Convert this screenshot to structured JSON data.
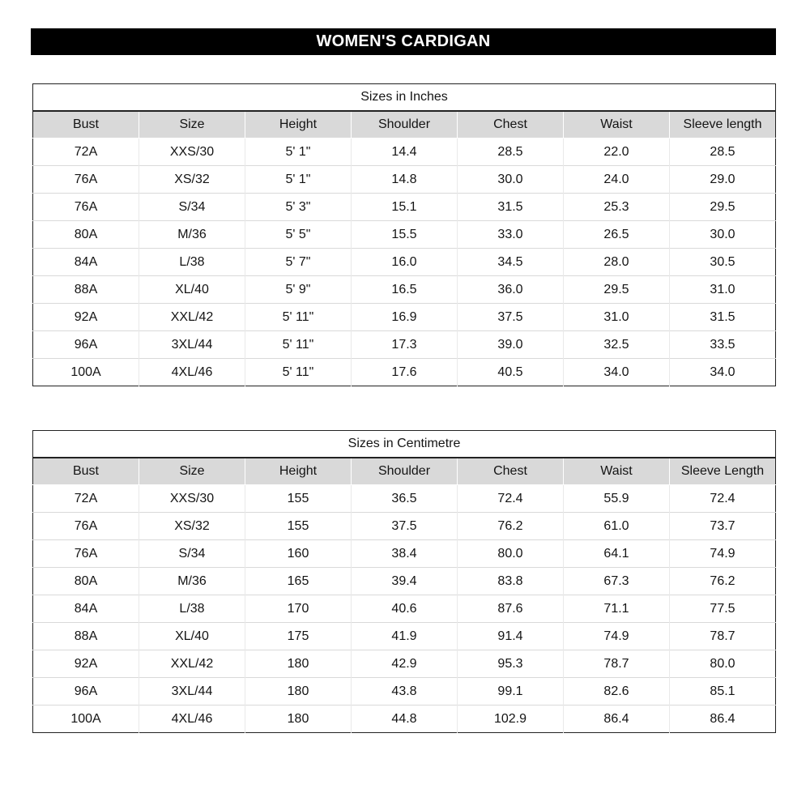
{
  "header": {
    "title": "WOMEN'S CARDIGAN"
  },
  "colors": {
    "bar_background": "#000000",
    "bar_text": "#ffffff",
    "table_header_background": "#d9d9d9",
    "table_border": "#222222",
    "gridline": "#d9d9d9",
    "text": "#141414"
  },
  "chart_data": [
    {
      "type": "table",
      "title": "Sizes in Inches",
      "columns": [
        "Bust",
        "Size",
        "Height",
        "Shoulder",
        "Chest",
        "Waist",
        "Sleeve length"
      ],
      "rows": [
        [
          "72A",
          "XXS/30",
          "5' 1\"",
          "14.4",
          "28.5",
          "22.0",
          "28.5"
        ],
        [
          "76A",
          "XS/32",
          "5' 1\"",
          "14.8",
          "30.0",
          "24.0",
          "29.0"
        ],
        [
          "76A",
          "S/34",
          "5' 3\"",
          "15.1",
          "31.5",
          "25.3",
          "29.5"
        ],
        [
          "80A",
          "M/36",
          "5' 5\"",
          "15.5",
          "33.0",
          "26.5",
          "30.0"
        ],
        [
          "84A",
          "L/38",
          "5' 7\"",
          "16.0",
          "34.5",
          "28.0",
          "30.5"
        ],
        [
          "88A",
          "XL/40",
          "5' 9\"",
          "16.5",
          "36.0",
          "29.5",
          "31.0"
        ],
        [
          "92A",
          "XXL/42",
          "5' 11\"",
          "16.9",
          "37.5",
          "31.0",
          "31.5"
        ],
        [
          "96A",
          "3XL/44",
          "5' 11\"",
          "17.3",
          "39.0",
          "32.5",
          "33.5"
        ],
        [
          "100A",
          "4XL/46",
          "5' 11\"",
          "17.6",
          "40.5",
          "34.0",
          "34.0"
        ]
      ]
    },
    {
      "type": "table",
      "title": "Sizes in Centimetre",
      "columns": [
        "Bust",
        "Size",
        "Height",
        "Shoulder",
        "Chest",
        "Waist",
        "Sleeve Length"
      ],
      "rows": [
        [
          "72A",
          "XXS/30",
          "155",
          "36.5",
          "72.4",
          "55.9",
          "72.4"
        ],
        [
          "76A",
          "XS/32",
          "155",
          "37.5",
          "76.2",
          "61.0",
          "73.7"
        ],
        [
          "76A",
          "S/34",
          "160",
          "38.4",
          "80.0",
          "64.1",
          "74.9"
        ],
        [
          "80A",
          "M/36",
          "165",
          "39.4",
          "83.8",
          "67.3",
          "76.2"
        ],
        [
          "84A",
          "L/38",
          "170",
          "40.6",
          "87.6",
          "71.1",
          "77.5"
        ],
        [
          "88A",
          "XL/40",
          "175",
          "41.9",
          "91.4",
          "74.9",
          "78.7"
        ],
        [
          "92A",
          "XXL/42",
          "180",
          "42.9",
          "95.3",
          "78.7",
          "80.0"
        ],
        [
          "96A",
          "3XL/44",
          "180",
          "43.8",
          "99.1",
          "82.6",
          "85.1"
        ],
        [
          "100A",
          "4XL/46",
          "180",
          "44.8",
          "102.9",
          "86.4",
          "86.4"
        ]
      ]
    }
  ]
}
